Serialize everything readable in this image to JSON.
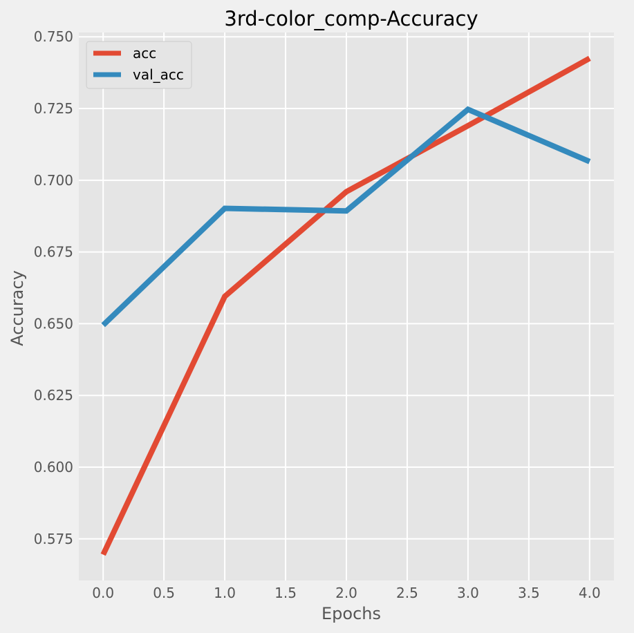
{
  "chart_data": {
    "type": "line",
    "title": "3rd-color_comp-Accuracy",
    "xlabel": "Epochs",
    "ylabel": "Accuracy",
    "x": [
      0,
      1,
      2,
      3,
      4
    ],
    "xlim": [
      -0.2,
      4.2
    ],
    "ylim": [
      0.5605,
      0.7515
    ],
    "xticks": [
      "0.0",
      "0.5",
      "1.0",
      "1.5",
      "2.0",
      "2.5",
      "3.0",
      "3.5",
      "4.0"
    ],
    "yticks": [
      "0.575",
      "0.600",
      "0.625",
      "0.650",
      "0.675",
      "0.700",
      "0.725",
      "0.750"
    ],
    "grid": true,
    "legend_position": "upper-left",
    "series": [
      {
        "name": "acc",
        "color": "#e24a33",
        "values": [
          0.5695,
          0.6595,
          0.696,
          0.719,
          0.7425
        ]
      },
      {
        "name": "val_acc",
        "color": "#348abd",
        "values": [
          0.6495,
          0.6902,
          0.6893,
          0.7247,
          0.7065
        ]
      }
    ]
  },
  "colors": {
    "figure_background": "#f0f0f0",
    "plot_background": "#e5e5e5",
    "grid": "#ffffff"
  }
}
